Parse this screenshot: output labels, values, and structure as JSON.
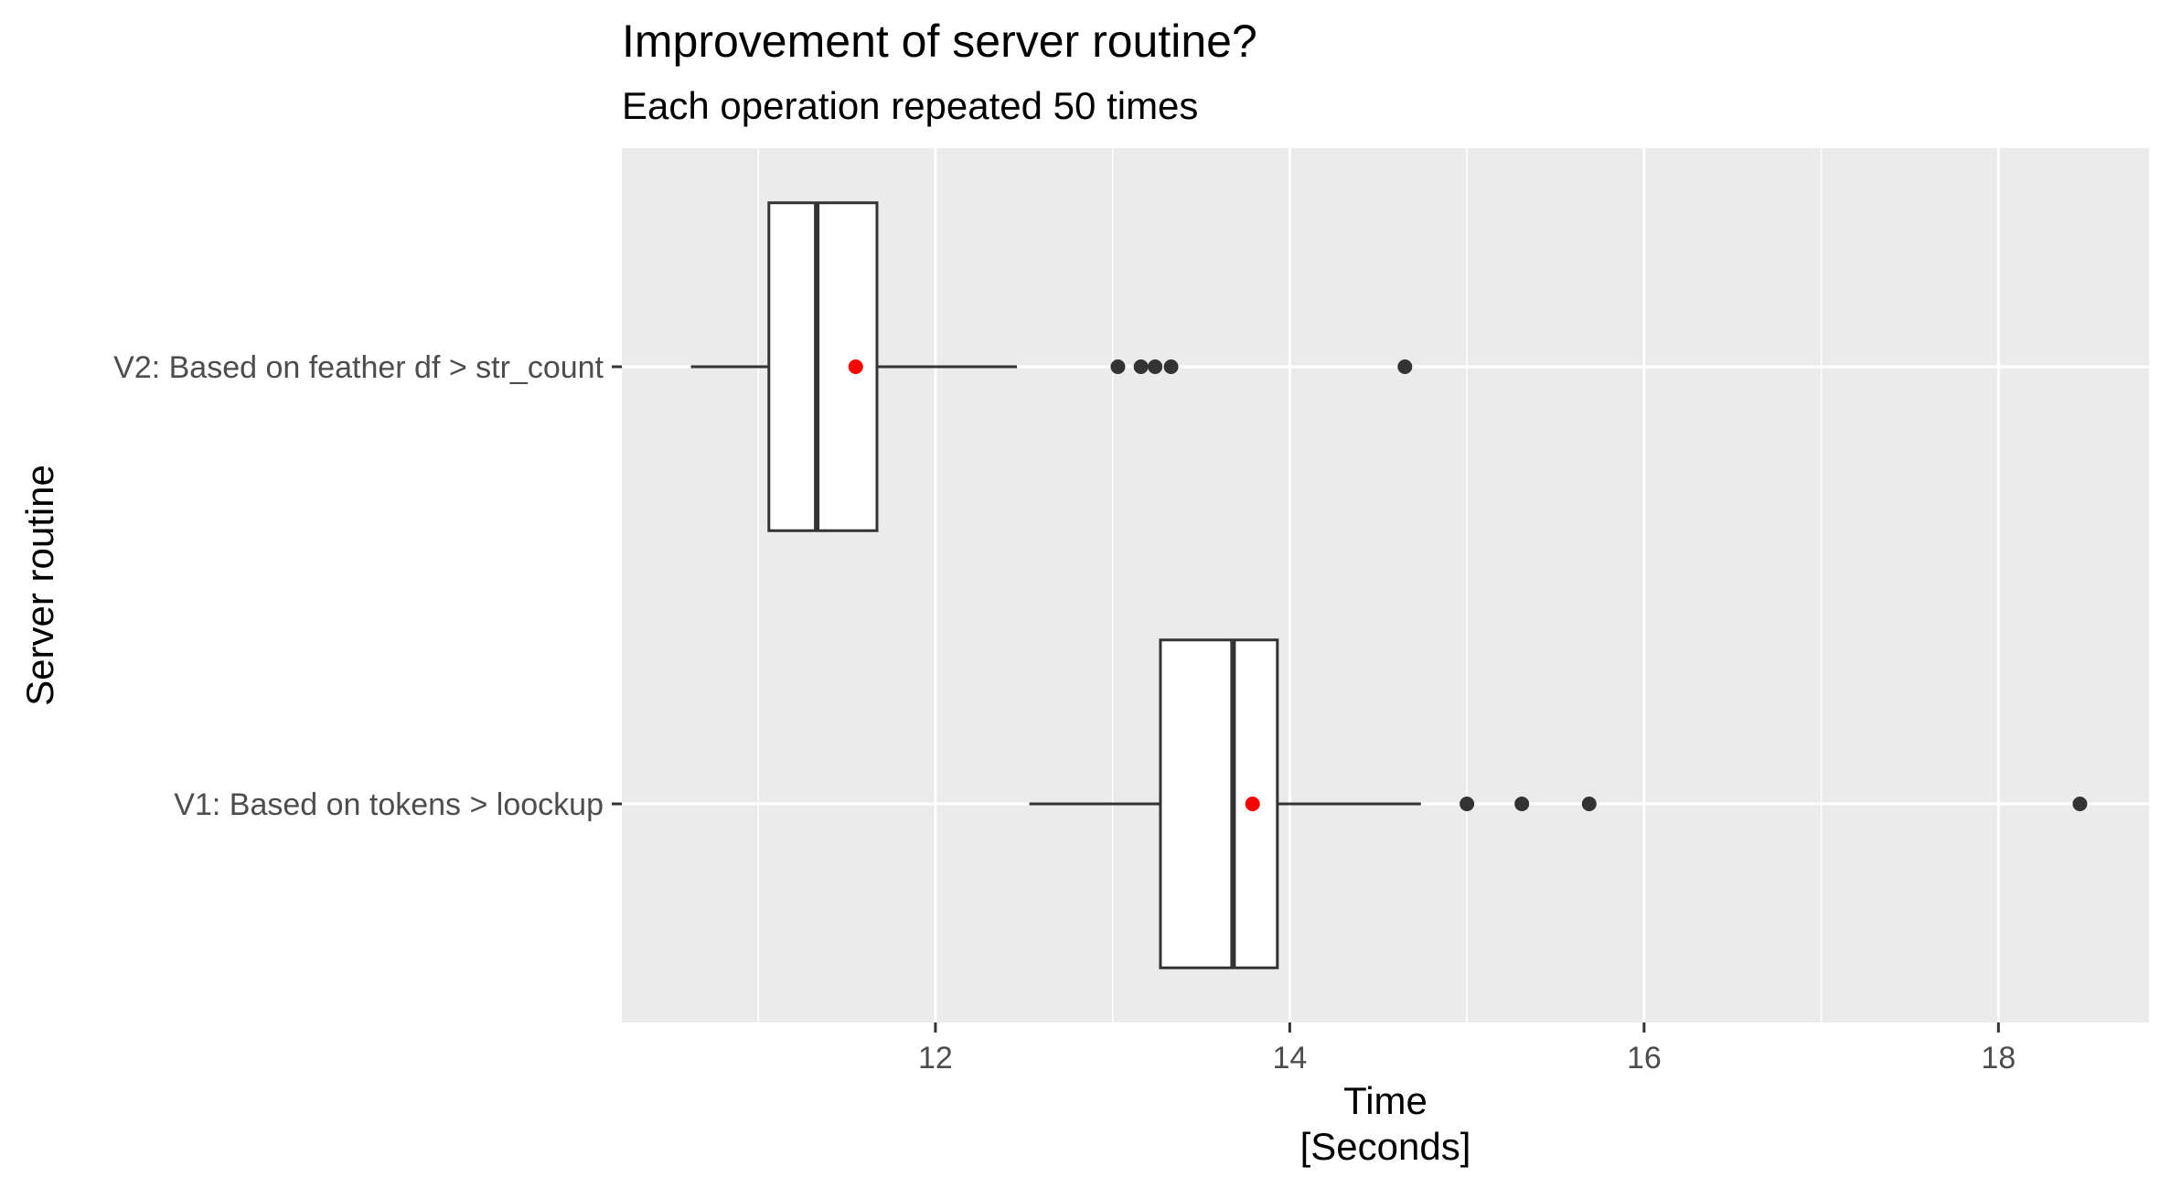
{
  "chart_data": {
    "type": "boxplot",
    "orientation": "horizontal",
    "title": "Improvement of server routine?",
    "subtitle": "Each operation repeated 50 times",
    "xlabel": "Time",
    "xlabel_unit": "[Seconds]",
    "ylabel": "Server routine",
    "xlim": [
      10.23,
      18.85
    ],
    "x_ticks": [
      12,
      14,
      16,
      18
    ],
    "x_tick_labels": [
      "12",
      "14",
      "16",
      "18"
    ],
    "grid": true,
    "legend": "none",
    "colors": {
      "panel_background": "#ebebeb",
      "grid": "#ffffff",
      "box_fill": "#ffffff",
      "box_stroke": "#333333",
      "outlier": "#333333",
      "mean": "#ff0000"
    },
    "categories": [
      "V2: Based on feather df > str_count",
      "V1: Based on tokens > loockup"
    ],
    "series": [
      {
        "category": "V2: Based on feather df > str_count",
        "whisker_low": 10.62,
        "q1": 11.06,
        "median": 11.33,
        "q3": 11.67,
        "whisker_high": 12.46,
        "mean": 11.55,
        "outliers": [
          13.03,
          13.16,
          13.24,
          13.33,
          14.65
        ]
      },
      {
        "category": "V1: Based on tokens > loockup",
        "whisker_low": 12.53,
        "q1": 13.27,
        "median": 13.68,
        "q3": 13.93,
        "whisker_high": 14.74,
        "mean": 13.79,
        "outliers": [
          15.0,
          15.31,
          15.69,
          18.46
        ]
      }
    ]
  }
}
